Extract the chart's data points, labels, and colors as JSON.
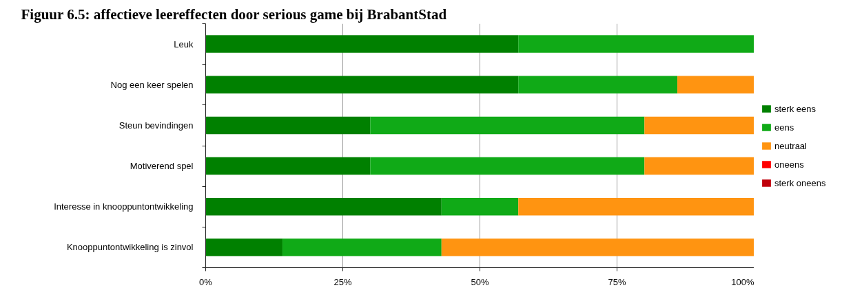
{
  "chart_data": {
    "type": "bar",
    "orientation": "horizontal",
    "stacked": true,
    "title": "Figuur 6.5: affectieve leereffecten door serious game bij BrabantStad",
    "categories": [
      "Leuk",
      "Nog een keer spelen",
      "Steun bevindingen",
      "Motiverend spel",
      "Interesse in knooppuntontwikkeling",
      "Knooppuntontwikkeling is zinvol"
    ],
    "series": [
      {
        "name": "sterk eens",
        "color": "#008000",
        "values": [
          57,
          57,
          30,
          30,
          43,
          14
        ]
      },
      {
        "name": "eens",
        "color": "#10aa17",
        "values": [
          43,
          29,
          50,
          50,
          14,
          29
        ]
      },
      {
        "name": "neutraal",
        "color": "#ff9411",
        "values": [
          0,
          14,
          20,
          20,
          43,
          57
        ]
      },
      {
        "name": "oneens",
        "color": "#ff0000",
        "values": [
          0,
          0,
          0,
          0,
          0,
          0
        ]
      },
      {
        "name": "sterk oneens",
        "color": "#c0000b",
        "values": [
          0,
          0,
          0,
          0,
          0,
          0
        ]
      }
    ],
    "xlim": [
      0,
      100
    ],
    "xticks": [
      {
        "value": 0,
        "label": "0%"
      },
      {
        "value": 25,
        "label": "25%"
      },
      {
        "value": 50,
        "label": "50%"
      },
      {
        "value": 75,
        "label": "75%"
      },
      {
        "value": 100,
        "label": "100%"
      }
    ],
    "grid": "x",
    "legend": "right"
  }
}
